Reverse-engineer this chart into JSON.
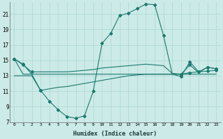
{
  "xlabel": "Humidex (Indice chaleur)",
  "background_color": "#cceae7",
  "line_color": "#1a7a6e",
  "grid_color": "#aad8d3",
  "xmin": -0.5,
  "xmax": 23.5,
  "ymin": 7,
  "ymax": 22.5,
  "yticks": [
    7,
    9,
    11,
    13,
    15,
    17,
    19,
    21
  ],
  "xticks": [
    0,
    1,
    2,
    3,
    4,
    5,
    6,
    7,
    8,
    9,
    10,
    11,
    12,
    13,
    14,
    15,
    16,
    17,
    18,
    19,
    20,
    21,
    22,
    23
  ],
  "line1_x": [
    0,
    1,
    2,
    3,
    4,
    5,
    6,
    7,
    8,
    9,
    10,
    11,
    12,
    13,
    14,
    15,
    16,
    17,
    18,
    19,
    20,
    21,
    22,
    23
  ],
  "line1_y": [
    15.2,
    14.5,
    13.2,
    11.1,
    9.7,
    8.6,
    7.7,
    7.5,
    7.8,
    11.0,
    17.2,
    18.5,
    20.8,
    21.1,
    21.7,
    22.3,
    22.2,
    18.2,
    13.2,
    12.9,
    14.8,
    13.5,
    14.1,
    13.9
  ],
  "line1_marker_x": [
    0,
    1,
    3,
    4,
    5,
    6,
    7,
    8,
    9,
    10,
    11,
    12,
    13,
    14,
    15,
    16,
    17,
    19,
    20,
    21,
    22,
    23
  ],
  "line1_marker_y": [
    15.2,
    14.5,
    11.1,
    9.7,
    8.6,
    7.7,
    7.5,
    7.8,
    11.0,
    17.2,
    18.5,
    20.8,
    21.1,
    21.7,
    22.3,
    22.2,
    18.2,
    12.9,
    14.8,
    13.5,
    14.1,
    13.9
  ],
  "line2_x": [
    0,
    1,
    2,
    3,
    4,
    5,
    6,
    7,
    8,
    9,
    10,
    11,
    12,
    13,
    14,
    15,
    16,
    17,
    18,
    19,
    20,
    21,
    22,
    23
  ],
  "line2_y": [
    15.2,
    14.4,
    13.5,
    13.5,
    13.5,
    13.5,
    13.5,
    13.6,
    13.7,
    13.8,
    14.0,
    14.1,
    14.2,
    14.3,
    14.4,
    14.5,
    14.4,
    14.3,
    13.3,
    13.2,
    14.4,
    13.4,
    14.1,
    13.9
  ],
  "line2_marker_x": [
    0,
    1,
    2,
    19,
    20,
    22,
    23
  ],
  "line2_marker_y": [
    15.2,
    14.4,
    13.5,
    13.2,
    14.4,
    14.1,
    13.9
  ],
  "line3_x": [
    0,
    1,
    2,
    3,
    4,
    5,
    6,
    7,
    8,
    9,
    10,
    11,
    12,
    13,
    14,
    15,
    16,
    17,
    18,
    19,
    20,
    21,
    22,
    23
  ],
  "line3_y": [
    15.2,
    13.2,
    13.2,
    13.2,
    13.2,
    13.2,
    13.2,
    13.2,
    13.2,
    13.2,
    13.2,
    13.2,
    13.2,
    13.2,
    13.2,
    13.2,
    13.2,
    13.2,
    13.2,
    13.2,
    13.2,
    13.2,
    13.2,
    13.2
  ],
  "line4_x": [
    0,
    1,
    2,
    3,
    4,
    5,
    6,
    7,
    8,
    9,
    10,
    11,
    12,
    13,
    14,
    15,
    16,
    17,
    18,
    19,
    20,
    21,
    22,
    23
  ],
  "line4_y": [
    13.0,
    13.0,
    13.0,
    11.1,
    11.3,
    11.5,
    11.6,
    11.8,
    12.0,
    12.2,
    12.4,
    12.6,
    12.8,
    13.0,
    13.1,
    13.2,
    13.2,
    13.2,
    13.2,
    13.2,
    13.4,
    13.5,
    13.6,
    13.7
  ],
  "line4_marker_x": [
    3,
    19,
    20,
    21,
    22,
    23
  ],
  "line4_marker_y": [
    11.1,
    13.2,
    13.4,
    13.5,
    13.6,
    13.7
  ]
}
